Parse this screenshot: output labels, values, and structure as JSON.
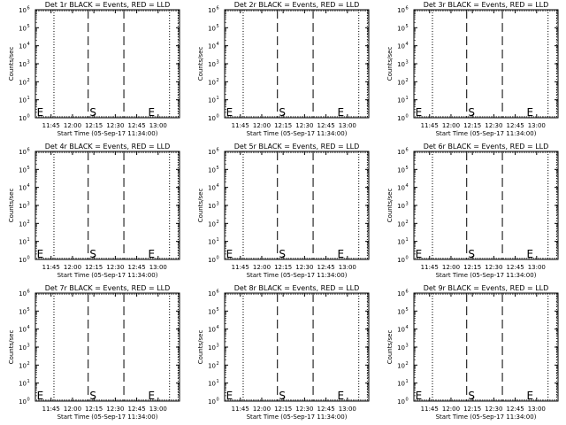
{
  "chart_data": {
    "type": "line",
    "grid": false,
    "xlabel": "Start Time (05-Sep-17 11:34:00)",
    "ylabel": "Counts/sec",
    "x_range": [
      "11:34",
      "13:15"
    ],
    "x_ticks": [
      "11:45",
      "12:00",
      "12:15",
      "12:30",
      "12:45",
      "13:00"
    ],
    "y_scale": "log",
    "y_range": [
      1,
      1000000
    ],
    "y_ticks": [
      {
        "base": "10",
        "exp": "0"
      },
      {
        "base": "10",
        "exp": "1"
      },
      {
        "base": "10",
        "exp": "2"
      },
      {
        "base": "10",
        "exp": "3"
      },
      {
        "base": "10",
        "exp": "4"
      },
      {
        "base": "10",
        "exp": "5"
      },
      {
        "base": "10",
        "exp": "6"
      }
    ],
    "dotted_lines_x": [
      "11:34",
      "11:47",
      "13:08",
      "13:14"
    ],
    "dashed_lines_x": [
      "12:11",
      "12:36"
    ],
    "markers": [
      {
        "label": "E",
        "x": "11:35",
        "y": 2
      },
      {
        "label": "S",
        "x": "12:12",
        "y": 2
      },
      {
        "label": "E",
        "x": "12:53",
        "y": 2
      }
    ],
    "series": [],
    "panels": [
      {
        "title": "Det 1r BLACK = Events, RED = LLD"
      },
      {
        "title": "Det 2r BLACK = Events, RED = LLD"
      },
      {
        "title": "Det 3r BLACK = Events, RED = LLD"
      },
      {
        "title": "Det 4r BLACK = Events, RED = LLD"
      },
      {
        "title": "Det 5r BLACK = Events, RED = LLD"
      },
      {
        "title": "Det 6r BLACK = Events, RED = LLD"
      },
      {
        "title": "Det 7r BLACK = Events, RED = LLD"
      },
      {
        "title": "Det 8r BLACK = Events, RED = LLD"
      },
      {
        "title": "Det 9r BLACK = Events, RED = LLD"
      }
    ]
  }
}
